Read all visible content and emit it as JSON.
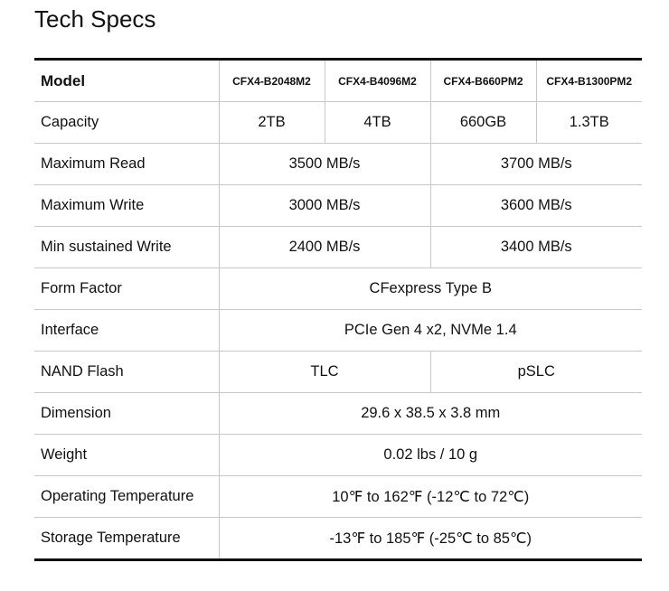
{
  "title": "Tech Specs",
  "table": {
    "header": [
      "Model",
      "CFX4-B2048M2",
      "CFX4-B4096M2",
      "CFX4-B660PM2",
      "CFX4-B1300PM2"
    ],
    "rows": [
      {
        "label": "Capacity",
        "cells": [
          "2TB",
          "4TB",
          "660GB",
          "1.3TB"
        ]
      },
      {
        "label": "Maximum Read",
        "cells": [
          "3500 MB/s",
          "3700 MB/s"
        ]
      },
      {
        "label": "Maximum Write",
        "cells": [
          "3000 MB/s",
          "3600 MB/s"
        ]
      },
      {
        "label": "Min sustained Write",
        "cells": [
          "2400 MB/s",
          "3400 MB/s"
        ]
      },
      {
        "label": "Form Factor",
        "cells": [
          "CFexpress Type B"
        ]
      },
      {
        "label": "Interface",
        "cells": [
          "PCIe Gen 4 x2, NVMe 1.4"
        ]
      },
      {
        "label": "NAND Flash",
        "cells": [
          "TLC",
          "pSLC"
        ]
      },
      {
        "label": "Dimension",
        "cells": [
          "29.6 x 38.5 x 3.8 mm"
        ]
      },
      {
        "label": "Weight",
        "cells": [
          "0.02 lbs / 10 g"
        ]
      },
      {
        "label": "Operating Temperature",
        "cells": [
          "10℉ to 162℉ (-12℃ to 72℃)"
        ]
      },
      {
        "label": "Storage Temperature",
        "cells": [
          "-13℉ to 185℉ (-25℃ to 85℃)"
        ]
      }
    ]
  }
}
